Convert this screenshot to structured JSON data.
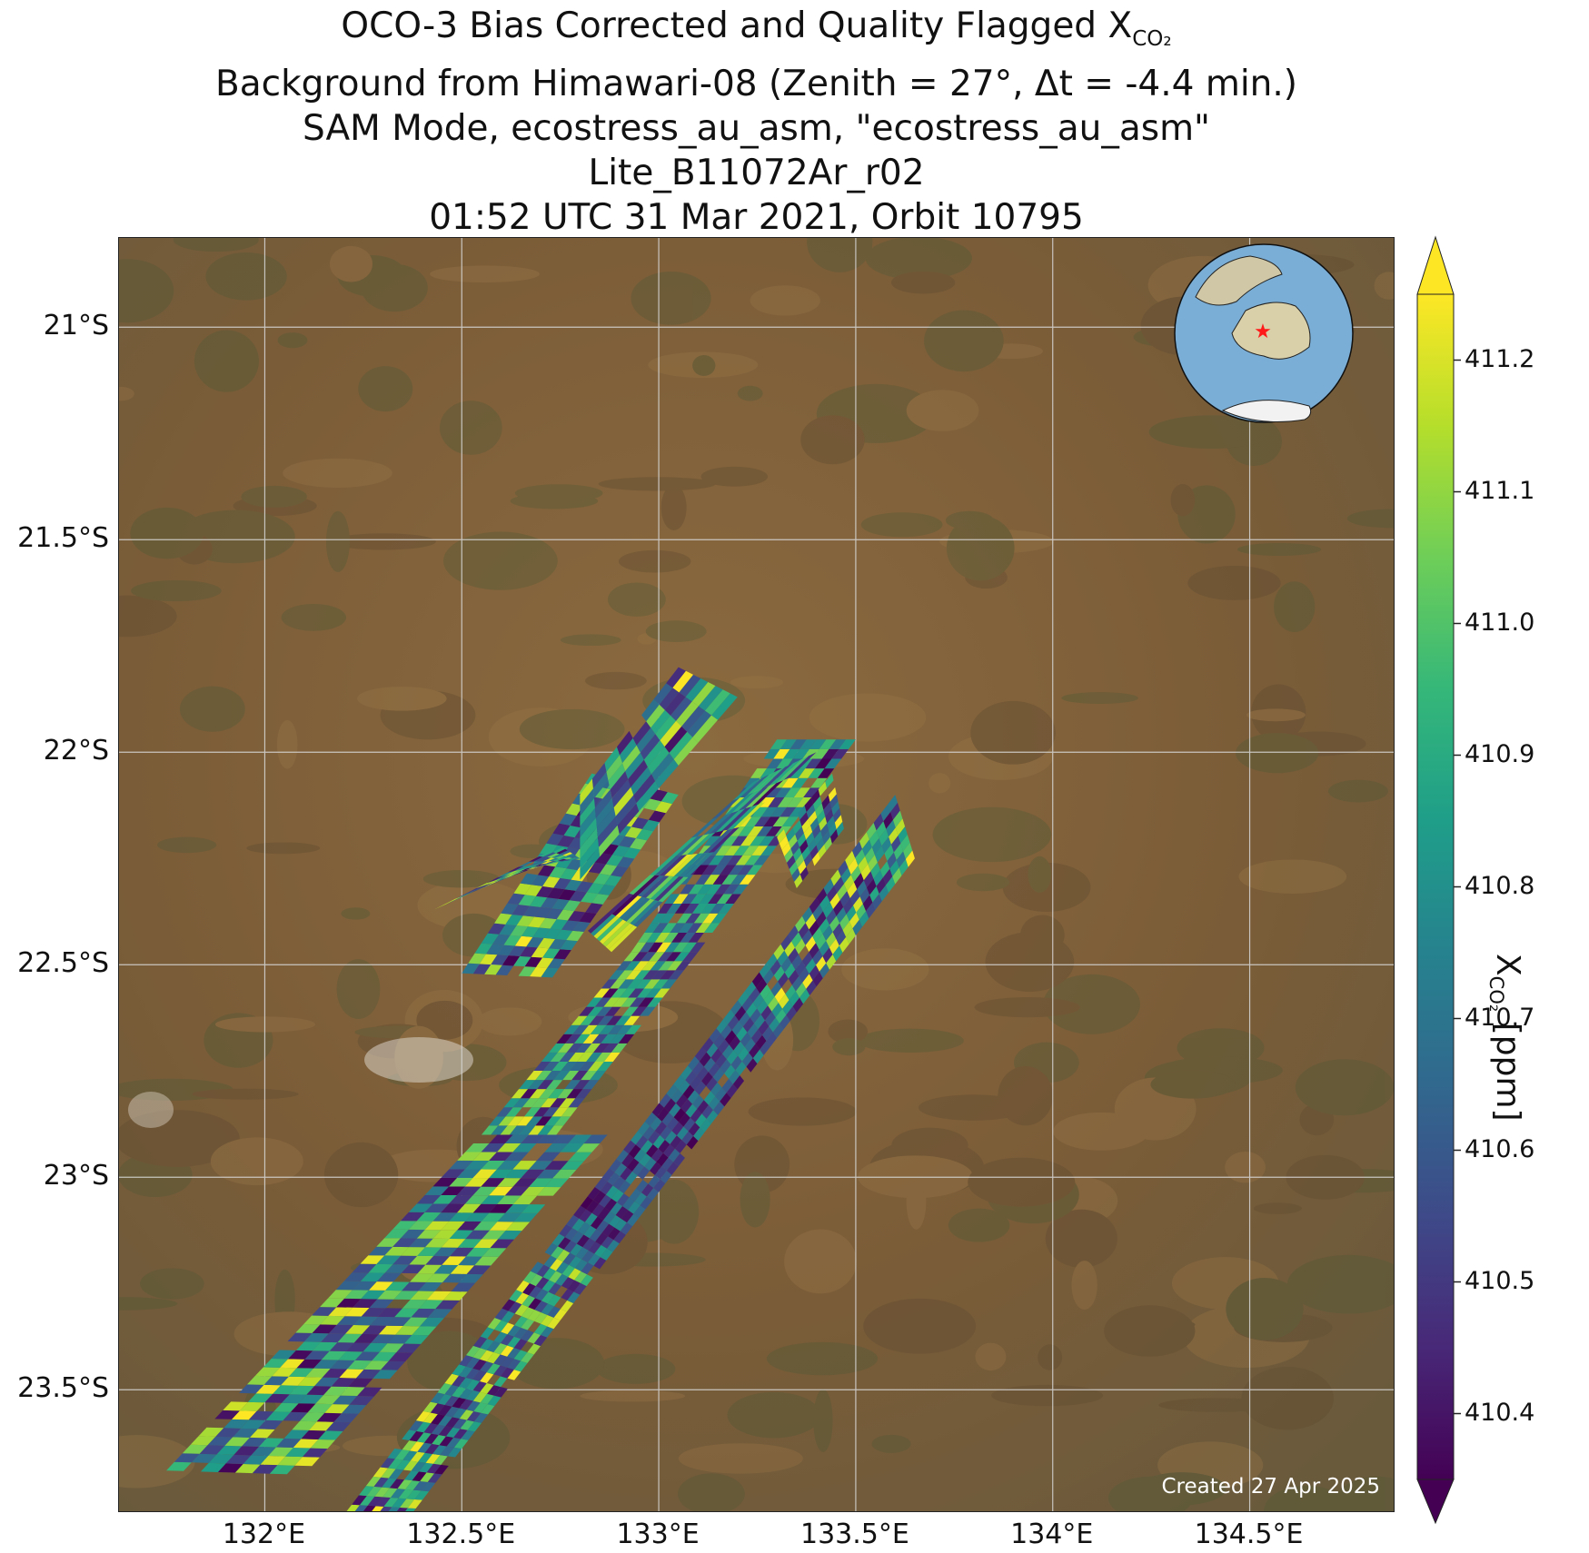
{
  "title": {
    "line1_prefix": "OCO-3 Bias Corrected and Quality Flagged X",
    "line1_sub": "CO₂",
    "line2": "Background from Himawari-08 (Zenith = 27°, Δt = -4.4 min.)",
    "line3": "SAM Mode, ecostress_au_asm, \"ecostress_au_asm\"",
    "line4": "Lite_B11072Ar_r02",
    "line5": "01:52 UTC 31 Mar 2021, Orbit 10795"
  },
  "map": {
    "lon_range": [
      131.63,
      134.87
    ],
    "lat_range": [
      -23.79,
      -20.79
    ],
    "lon_ticks": [
      {
        "value": 132.0,
        "label": "132°E"
      },
      {
        "value": 132.5,
        "label": "132.5°E"
      },
      {
        "value": 133.0,
        "label": "133°E"
      },
      {
        "value": 133.5,
        "label": "133.5°E"
      },
      {
        "value": 134.0,
        "label": "134°E"
      },
      {
        "value": 134.5,
        "label": "134.5°E"
      }
    ],
    "lat_ticks": [
      {
        "value": -21.0,
        "label": "21°S"
      },
      {
        "value": -21.5,
        "label": "21.5°S"
      },
      {
        "value": -22.0,
        "label": "22°S"
      },
      {
        "value": -22.5,
        "label": "22.5°S"
      },
      {
        "value": -23.0,
        "label": "23°S"
      },
      {
        "value": -23.5,
        "label": "23.5°S"
      }
    ],
    "grid": true,
    "background": "satellite imagery (arid terrain)",
    "inset": "globe-icon centered on Australia with red star marker",
    "created": "Created 27 Apr 2025"
  },
  "colorbar": {
    "label_prefix": "X",
    "label_sub": "CO₂",
    "label_suffix": " [ppm]",
    "cmap": "viridis",
    "extend": "both",
    "vmin": 410.35,
    "vmax": 411.25,
    "ticks": [
      {
        "value": 410.4,
        "label": "410.4"
      },
      {
        "value": 410.5,
        "label": "410.5"
      },
      {
        "value": 410.6,
        "label": "410.6"
      },
      {
        "value": 410.7,
        "label": "410.7"
      },
      {
        "value": 410.8,
        "label": "410.8"
      },
      {
        "value": 410.9,
        "label": "410.9"
      },
      {
        "value": 411.0,
        "label": "411.0"
      },
      {
        "value": 411.1,
        "label": "411.1"
      },
      {
        "value": 411.2,
        "label": "411.2"
      }
    ],
    "colors": [
      "#440154",
      "#482878",
      "#3e4a89",
      "#31688e",
      "#26828e",
      "#1f9e89",
      "#35b779",
      "#6ece58",
      "#b5de2b",
      "#fde725"
    ]
  },
  "chart_data": {
    "type": "heatmap",
    "swaths_lonlat": [
      {
        "name": "swath-1",
        "corners": [
          [
            131.75,
            -23.69
          ],
          [
            132.1,
            -23.7
          ],
          [
            132.87,
            -22.9
          ],
          [
            132.55,
            -22.9
          ]
        ]
      },
      {
        "name": "swath-2",
        "corners": [
          [
            132.55,
            -22.9
          ],
          [
            132.74,
            -22.9
          ],
          [
            133.1,
            -22.47
          ],
          [
            132.93,
            -22.47
          ]
        ]
      },
      {
        "name": "swath-3",
        "corners": [
          [
            132.93,
            -22.47
          ],
          [
            133.1,
            -22.47
          ],
          [
            133.5,
            -21.97
          ],
          [
            133.3,
            -21.97
          ]
        ]
      },
      {
        "name": "swath-4",
        "corners": [
          [
            132.13,
            -23.88
          ],
          [
            132.3,
            -23.88
          ],
          [
            133.65,
            -22.25
          ],
          [
            133.6,
            -22.1
          ]
        ]
      },
      {
        "name": "swath-5",
        "corners": [
          [
            132.88,
            -22.47
          ],
          [
            133.4,
            -22.0
          ],
          [
            133.24,
            -22.07
          ],
          [
            132.82,
            -22.42
          ]
        ]
      },
      {
        "name": "swath-6",
        "corners": [
          [
            132.5,
            -22.52
          ],
          [
            132.73,
            -22.53
          ],
          [
            133.05,
            -22.1
          ],
          [
            132.83,
            -22.05
          ]
        ]
      },
      {
        "name": "swath-7",
        "corners": [
          [
            132.43,
            -22.37
          ],
          [
            132.67,
            -22.27
          ],
          [
            132.8,
            -22.25
          ],
          [
            132.75,
            -22.22
          ]
        ]
      },
      {
        "name": "swath-8",
        "corners": [
          [
            132.8,
            -22.3
          ],
          [
            133.2,
            -21.87
          ],
          [
            133.05,
            -21.8
          ],
          [
            132.8,
            -22.1
          ]
        ]
      },
      {
        "name": "swath-9",
        "corners": [
          [
            133.3,
            -22.2
          ],
          [
            133.44,
            -22.05
          ],
          [
            133.47,
            -22.18
          ],
          [
            133.35,
            -22.32
          ]
        ]
      }
    ],
    "value_range_ppm": [
      410.35,
      411.25
    ]
  }
}
